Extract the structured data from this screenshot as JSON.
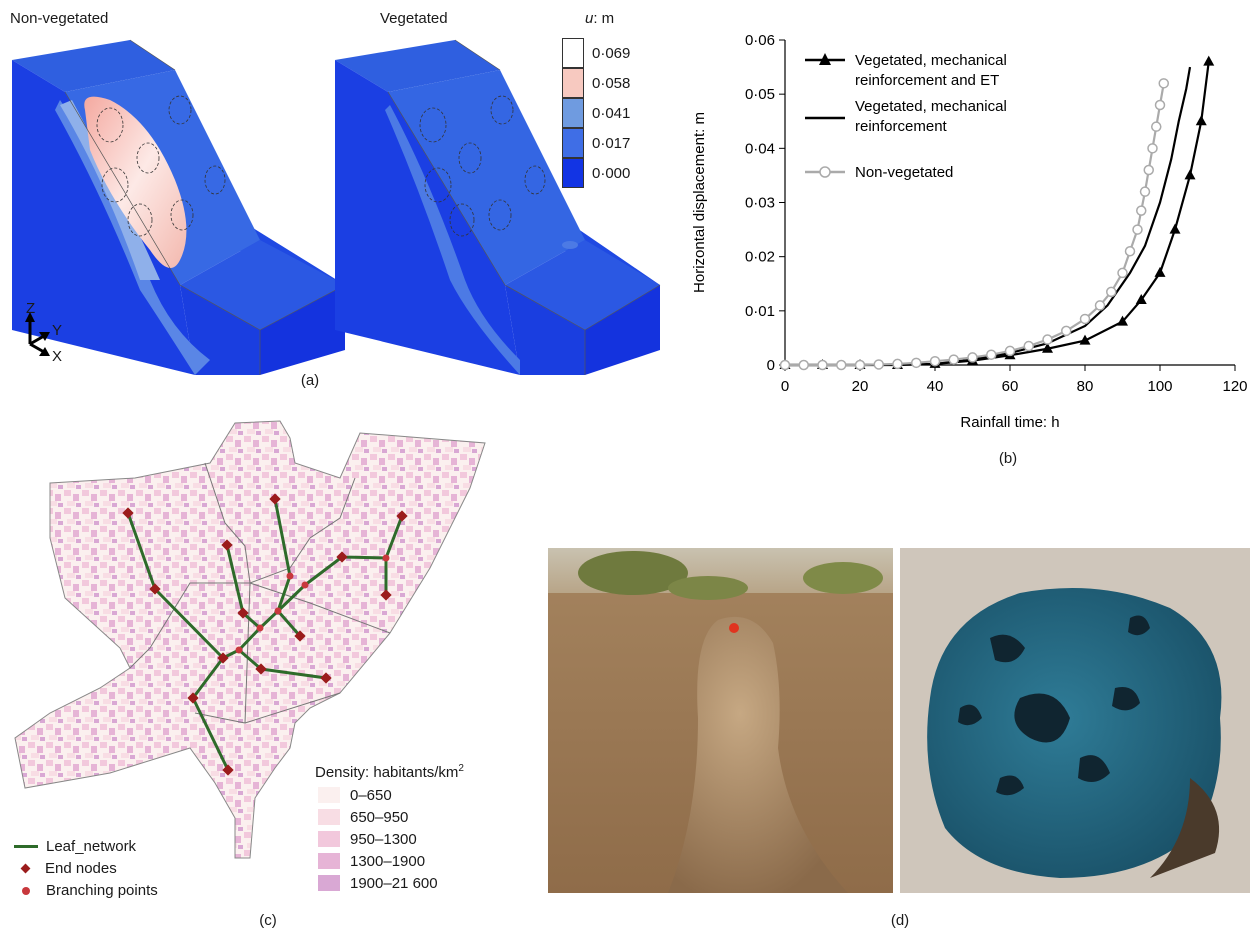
{
  "panel_a": {
    "title_left": "Non-vegetated",
    "title_right": "Vegetated",
    "legend_title_var": "u",
    "legend_title_unit": ": m",
    "legend": [
      {
        "label": "0·069",
        "color": "#ffffff"
      },
      {
        "label": "0·058",
        "color": "#f7c9c0"
      },
      {
        "label": "0·041",
        "color": "#6f9be0"
      },
      {
        "label": "0·017",
        "color": "#3f6ee6"
      },
      {
        "label": "0·000",
        "color": "#1234e4"
      }
    ],
    "axes": {
      "z": "Z",
      "y": "Y",
      "x": "X"
    },
    "caption": "(a)"
  },
  "panel_b": {
    "caption": "(b)",
    "chart_data": {
      "type": "line",
      "xlabel": "Rainfall time: h",
      "ylabel": "Horizontal displacement: m",
      "xlim": [
        0,
        120
      ],
      "ylim": [
        0,
        0.06
      ],
      "xticks": [
        "0",
        "20",
        "40",
        "60",
        "80",
        "100",
        "120"
      ],
      "yticks": [
        "0",
        "0·01",
        "0·02",
        "0·03",
        "0·04",
        "0·05",
        "0·06"
      ],
      "legend_position": "top-left",
      "series": [
        {
          "name": "Vegetated, mechanical reinforcement and ET",
          "marker": "filled-triangle",
          "color": "#000000",
          "x": [
            0,
            10,
            20,
            30,
            40,
            50,
            60,
            70,
            80,
            90,
            95,
            100,
            104,
            108,
            111,
            113
          ],
          "y": [
            0,
            0,
            0,
            0,
            0.0002,
            0.0008,
            0.0018,
            0.003,
            0.0045,
            0.008,
            0.012,
            0.017,
            0.025,
            0.035,
            0.045,
            0.056
          ]
        },
        {
          "name": "Vegetated, mechanical reinforcement",
          "marker": "none",
          "color": "#000000",
          "x": [
            0,
            20,
            40,
            50,
            60,
            70,
            80,
            86,
            92,
            96,
            100,
            103,
            105,
            107,
            108
          ],
          "y": [
            0,
            0,
            0.0002,
            0.001,
            0.0022,
            0.004,
            0.0072,
            0.011,
            0.017,
            0.022,
            0.03,
            0.038,
            0.045,
            0.051,
            0.055
          ]
        },
        {
          "name": "Non-vegetated",
          "marker": "open-circle",
          "color": "#aaaaaa",
          "x": [
            0,
            5,
            10,
            15,
            20,
            25,
            30,
            35,
            40,
            45,
            50,
            55,
            60,
            65,
            70,
            75,
            80,
            84,
            87,
            90,
            92,
            94,
            95,
            96,
            97,
            98,
            99,
            100,
            101
          ],
          "y": [
            0,
            0,
            0,
            0,
            0,
            0.0001,
            0.0002,
            0.0004,
            0.0007,
            0.001,
            0.0014,
            0.0019,
            0.0026,
            0.0035,
            0.0047,
            0.0063,
            0.0085,
            0.011,
            0.0135,
            0.017,
            0.021,
            0.025,
            0.0285,
            0.032,
            0.036,
            0.04,
            0.044,
            0.048,
            0.052
          ]
        }
      ]
    }
  },
  "panel_c": {
    "caption": "(c)",
    "density_title_prefix": "Density: habitants/km",
    "density_title_sup": "2",
    "density_classes": [
      {
        "label": "0–650",
        "color": "#fbf0ef"
      },
      {
        "label": "650–950",
        "color": "#f8dde4"
      },
      {
        "label": "950–1300",
        "color": "#f2c8dc"
      },
      {
        "label": "1300–1900",
        "color": "#e6b4d6"
      },
      {
        "label": "1900–21 600",
        "color": "#d9a8d4"
      }
    ],
    "network_legend": {
      "leaf": "Leaf_network",
      "end": "End nodes",
      "branch": "Branching points"
    },
    "colors": {
      "leaf": "#2e6b2a",
      "end": "#9b1c1c",
      "branch": "#c8383c"
    }
  },
  "panel_d": {
    "caption": "(d)"
  }
}
